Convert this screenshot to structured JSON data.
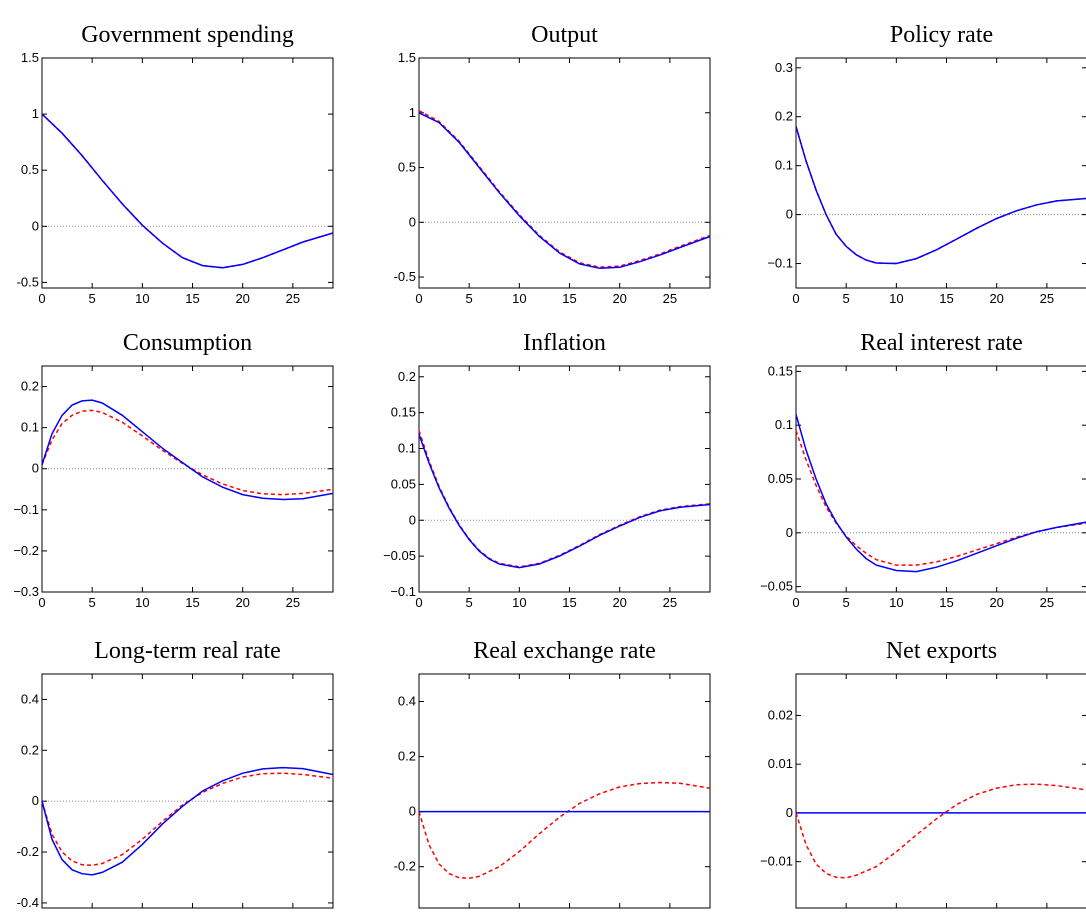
{
  "figure": {
    "line_colors": {
      "solid": "#0000ff",
      "dashed": "#ff0000",
      "zero_line": "#8c8c8c"
    }
  },
  "chart_data": [
    {
      "type": "line",
      "title": "Government spending",
      "xlim": [
        0,
        29
      ],
      "ylim": [
        -0.55,
        1.5
      ],
      "xticks": [
        "0",
        "5",
        "10",
        "15",
        "20",
        "25"
      ],
      "yticks": [
        "-0.5",
        "0",
        "0.5",
        "1",
        "1.5"
      ],
      "zero_line": true,
      "x": [
        0,
        2,
        4,
        6,
        8,
        10,
        12,
        14,
        16,
        18,
        20,
        22,
        24,
        26,
        29
      ],
      "series": [
        {
          "style": "solid",
          "values": [
            1.0,
            0.83,
            0.63,
            0.41,
            0.2,
            0.01,
            -0.15,
            -0.28,
            -0.35,
            -0.37,
            -0.34,
            -0.28,
            -0.21,
            -0.14,
            -0.06
          ]
        },
        {
          "style": "dashed",
          "values": [
            1.0,
            0.83,
            0.63,
            0.41,
            0.2,
            0.01,
            -0.15,
            -0.28,
            -0.35,
            -0.37,
            -0.34,
            -0.28,
            -0.21,
            -0.14,
            -0.06
          ]
        }
      ]
    },
    {
      "type": "line",
      "title": "Output",
      "xlim": [
        0,
        29
      ],
      "ylim": [
        -0.6,
        1.5
      ],
      "xticks": [
        "0",
        "5",
        "10",
        "15",
        "20",
        "25"
      ],
      "yticks": [
        "-0.5",
        "0",
        "0.5",
        "1",
        "1.5"
      ],
      "zero_line": true,
      "x": [
        0,
        2,
        4,
        6,
        8,
        10,
        12,
        14,
        16,
        18,
        20,
        22,
        24,
        26,
        29
      ],
      "series": [
        {
          "style": "solid",
          "values": [
            1.0,
            0.91,
            0.73,
            0.5,
            0.27,
            0.06,
            -0.13,
            -0.28,
            -0.38,
            -0.42,
            -0.41,
            -0.36,
            -0.3,
            -0.23,
            -0.13
          ]
        },
        {
          "style": "dashed",
          "values": [
            1.02,
            0.92,
            0.74,
            0.51,
            0.28,
            0.07,
            -0.12,
            -0.27,
            -0.37,
            -0.41,
            -0.4,
            -0.35,
            -0.29,
            -0.22,
            -0.12
          ]
        }
      ]
    },
    {
      "type": "line",
      "title": "Policy rate",
      "xlim": [
        0,
        29
      ],
      "ylim": [
        -0.15,
        0.32
      ],
      "xticks": [
        "0",
        "5",
        "10",
        "15",
        "20",
        "25"
      ],
      "yticks": [
        "−0.1",
        "0",
        "0.1",
        "0.2",
        "0.3"
      ],
      "zero_line": true,
      "x": [
        0,
        1,
        2,
        3,
        4,
        5,
        6,
        7,
        8,
        10,
        12,
        14,
        16,
        18,
        20,
        22,
        24,
        26,
        29
      ],
      "series": [
        {
          "style": "solid",
          "values": [
            0.18,
            0.11,
            0.05,
            0.0,
            -0.04,
            -0.065,
            -0.082,
            -0.093,
            -0.099,
            -0.1,
            -0.09,
            -0.072,
            -0.05,
            -0.028,
            -0.008,
            0.008,
            0.02,
            0.028,
            0.033
          ]
        },
        {
          "style": "dashed",
          "values": [
            0.18,
            0.11,
            0.05,
            0.0,
            -0.04,
            -0.065,
            -0.082,
            -0.093,
            -0.099,
            -0.1,
            -0.09,
            -0.072,
            -0.05,
            -0.028,
            -0.008,
            0.008,
            0.02,
            0.028,
            0.033
          ]
        }
      ]
    },
    {
      "type": "line",
      "title": "Consumption",
      "xlim": [
        0,
        29
      ],
      "ylim": [
        -0.3,
        0.25
      ],
      "xticks": [
        "0",
        "5",
        "10",
        "15",
        "20",
        "25"
      ],
      "yticks": [
        "−0.3",
        "−0.2",
        "−0.1",
        "0",
        "0.1",
        "0.2"
      ],
      "zero_line": true,
      "x": [
        0,
        1,
        2,
        3,
        4,
        5,
        6,
        8,
        10,
        12,
        14,
        16,
        18,
        20,
        22,
        24,
        26,
        29
      ],
      "series": [
        {
          "style": "solid",
          "values": [
            0.01,
            0.085,
            0.13,
            0.155,
            0.165,
            0.167,
            0.16,
            0.13,
            0.09,
            0.05,
            0.015,
            -0.02,
            -0.045,
            -0.063,
            -0.072,
            -0.075,
            -0.073,
            -0.06
          ]
        },
        {
          "style": "dashed",
          "values": [
            0.01,
            0.07,
            0.11,
            0.13,
            0.14,
            0.142,
            0.137,
            0.113,
            0.08,
            0.045,
            0.013,
            -0.015,
            -0.037,
            -0.053,
            -0.061,
            -0.063,
            -0.06,
            -0.05
          ]
        }
      ]
    },
    {
      "type": "line",
      "title": "Inflation",
      "xlim": [
        0,
        29
      ],
      "ylim": [
        -0.1,
        0.215
      ],
      "xticks": [
        "0",
        "5",
        "10",
        "15",
        "20",
        "25"
      ],
      "yticks": [
        "−0.1",
        "−0.05",
        "0",
        "0.05",
        "0.1",
        "0.15",
        "0.2"
      ],
      "zero_line": true,
      "x": [
        0,
        1,
        2,
        3,
        4,
        5,
        6,
        7,
        8,
        10,
        12,
        14,
        16,
        18,
        20,
        22,
        24,
        26,
        29
      ],
      "series": [
        {
          "style": "solid",
          "values": [
            0.12,
            0.08,
            0.045,
            0.017,
            -0.007,
            -0.027,
            -0.043,
            -0.054,
            -0.061,
            -0.066,
            -0.061,
            -0.05,
            -0.036,
            -0.021,
            -0.008,
            0.004,
            0.013,
            0.018,
            0.022
          ]
        },
        {
          "style": "dashed",
          "values": [
            0.125,
            0.083,
            0.047,
            0.018,
            -0.006,
            -0.026,
            -0.042,
            -0.053,
            -0.06,
            -0.065,
            -0.06,
            -0.049,
            -0.035,
            -0.02,
            -0.007,
            0.005,
            0.014,
            0.019,
            0.023
          ]
        }
      ]
    },
    {
      "type": "line",
      "title": "Real interest rate",
      "xlim": [
        0,
        29
      ],
      "ylim": [
        -0.055,
        0.155
      ],
      "xticks": [
        "0",
        "5",
        "10",
        "15",
        "20",
        "25"
      ],
      "yticks": [
        "−0.05",
        "0",
        "0.05",
        "0.1",
        "0.15"
      ],
      "zero_line": true,
      "x": [
        0,
        1,
        2,
        3,
        4,
        5,
        6,
        7,
        8,
        10,
        12,
        14,
        16,
        18,
        20,
        22,
        24,
        26,
        29
      ],
      "series": [
        {
          "style": "solid",
          "values": [
            0.11,
            0.077,
            0.05,
            0.027,
            0.01,
            -0.004,
            -0.015,
            -0.024,
            -0.03,
            -0.035,
            -0.036,
            -0.032,
            -0.026,
            -0.019,
            -0.012,
            -0.005,
            0.001,
            0.005,
            0.01
          ]
        },
        {
          "style": "dashed",
          "values": [
            0.095,
            0.068,
            0.044,
            0.024,
            0.009,
            -0.003,
            -0.012,
            -0.019,
            -0.025,
            -0.03,
            -0.03,
            -0.027,
            -0.022,
            -0.016,
            -0.01,
            -0.004,
            0.001,
            0.005,
            0.009
          ]
        }
      ]
    },
    {
      "type": "line",
      "title": "Long-term real rate",
      "xlim": [
        0,
        29
      ],
      "ylim": [
        -0.42,
        0.5
      ],
      "xticks": [
        "0",
        "5",
        "10",
        "15",
        "20",
        "25"
      ],
      "yticks": [
        "-0.4",
        "-0.2",
        "0",
        "0.2",
        "0.4"
      ],
      "zero_line": true,
      "x": [
        0,
        1,
        2,
        3,
        4,
        5,
        6,
        8,
        10,
        12,
        14,
        16,
        18,
        20,
        22,
        24,
        26,
        29
      ],
      "series": [
        {
          "style": "solid",
          "values": [
            0.0,
            -0.15,
            -0.23,
            -0.27,
            -0.285,
            -0.29,
            -0.28,
            -0.24,
            -0.17,
            -0.09,
            -0.02,
            0.04,
            0.08,
            0.11,
            0.127,
            0.132,
            0.128,
            0.105
          ]
        },
        {
          "style": "dashed",
          "values": [
            0.0,
            -0.13,
            -0.2,
            -0.235,
            -0.25,
            -0.252,
            -0.245,
            -0.21,
            -0.15,
            -0.08,
            -0.015,
            0.035,
            0.07,
            0.095,
            0.108,
            0.11,
            0.105,
            0.09
          ]
        }
      ]
    },
    {
      "type": "line",
      "title": "Real exchange rate",
      "xlim": [
        0,
        29
      ],
      "ylim": [
        -0.35,
        0.5
      ],
      "xticks": [
        "0",
        "5",
        "10",
        "15",
        "20",
        "25"
      ],
      "yticks": [
        "-0.2",
        "0",
        "0.2",
        "0.4"
      ],
      "zero_line": false,
      "x": [
        0,
        1,
        2,
        3,
        4,
        5,
        6,
        8,
        10,
        12,
        14,
        16,
        18,
        20,
        22,
        24,
        26,
        29
      ],
      "series": [
        {
          "style": "solid",
          "values": [
            0,
            0,
            0,
            0,
            0,
            0,
            0,
            0,
            0,
            0,
            0,
            0,
            0,
            0,
            0,
            0,
            0,
            0
          ]
        },
        {
          "style": "dashed",
          "values": [
            0.0,
            -0.12,
            -0.19,
            -0.225,
            -0.24,
            -0.242,
            -0.235,
            -0.2,
            -0.145,
            -0.08,
            -0.02,
            0.03,
            0.065,
            0.09,
            0.102,
            0.106,
            0.103,
            0.085
          ]
        }
      ]
    },
    {
      "type": "line",
      "title": "Net exports",
      "xlim": [
        0,
        29
      ],
      "ylim": [
        -0.0195,
        0.0285
      ],
      "xticks": [
        "0",
        "5",
        "10",
        "15",
        "20",
        "25"
      ],
      "yticks": [
        "−0.01",
        "0",
        "0.01",
        "0.02"
      ],
      "zero_line": false,
      "x": [
        0,
        1,
        2,
        3,
        4,
        5,
        6,
        8,
        10,
        12,
        14,
        16,
        18,
        20,
        22,
        24,
        26,
        29
      ],
      "series": [
        {
          "style": "solid",
          "values": [
            0,
            0,
            0,
            0,
            0,
            0,
            0,
            0,
            0,
            0,
            0,
            0,
            0,
            0,
            0,
            0,
            0,
            0
          ]
        },
        {
          "style": "dashed",
          "values": [
            0.0,
            -0.0065,
            -0.0105,
            -0.0124,
            -0.0132,
            -0.0133,
            -0.0128,
            -0.011,
            -0.008,
            -0.0045,
            -0.0012,
            0.0017,
            0.0038,
            0.0051,
            0.0058,
            0.0059,
            0.0056,
            0.0047
          ]
        }
      ]
    }
  ]
}
